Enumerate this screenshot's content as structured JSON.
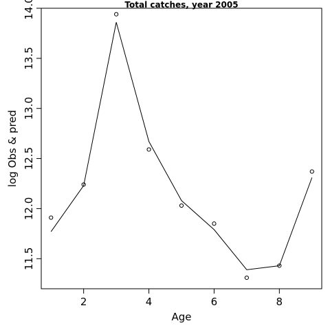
{
  "chart_data": {
    "type": "line",
    "title": "Total catches, year 2005",
    "xlabel": "Age",
    "ylabel": "log Obs & pred",
    "xlim": [
      0.7,
      9.3
    ],
    "ylim": [
      11.2,
      14.0
    ],
    "x_ticks": [
      2,
      4,
      6,
      8
    ],
    "y_ticks": [
      11.5,
      12.0,
      12.5,
      13.0,
      13.5,
      14.0
    ],
    "x_tick_labels": [
      "2",
      "4",
      "6",
      "8"
    ],
    "y_tick_labels": [
      "11.5",
      "12.0",
      "12.5",
      "13.0",
      "13.5",
      "14.0"
    ],
    "x": [
      1,
      2,
      3,
      4,
      5,
      6,
      7,
      8,
      9
    ],
    "series": [
      {
        "role": "observed",
        "style": "points",
        "values": [
          11.91,
          12.24,
          13.94,
          12.59,
          12.03,
          11.85,
          11.31,
          11.43,
          12.37
        ]
      },
      {
        "role": "predicted",
        "style": "line",
        "values": [
          11.77,
          12.23,
          13.86,
          12.67,
          12.08,
          11.79,
          11.39,
          11.43,
          12.31
        ]
      }
    ],
    "grid": false,
    "legend": "none"
  }
}
